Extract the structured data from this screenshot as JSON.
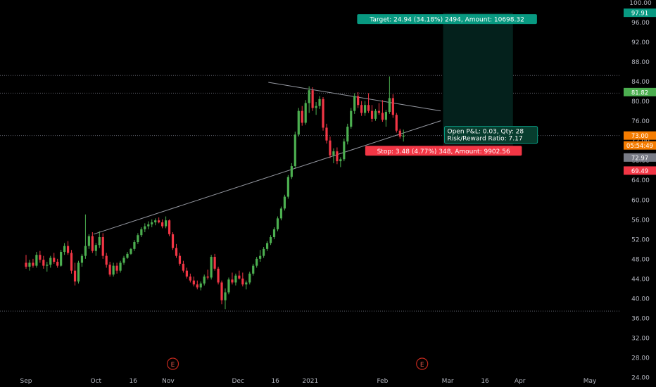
{
  "chart_data": {
    "type": "candlestick",
    "x_axis": {
      "labels": [
        "Sep",
        "Oct",
        "16",
        "Nov",
        "Dec",
        "16",
        "2021",
        "Feb",
        "Mar",
        "16",
        "Apr",
        "May"
      ],
      "label_days": [
        0,
        30,
        46,
        61,
        91,
        107,
        122,
        153,
        181,
        197,
        212,
        242
      ]
    },
    "y_axis": {
      "range": [
        22,
        100.5
      ],
      "ticks": [
        "24.00",
        "28.00",
        "32.00",
        "36.00",
        "40.00",
        "44.00",
        "48.00",
        "52.00",
        "56.00",
        "60.00",
        "64.00",
        "68.00",
        "72.00",
        "76.00",
        "80.00",
        "84.00",
        "88.00",
        "92.00",
        "96.00",
        "100.00"
      ]
    },
    "candles": [
      [
        47.2,
        48.8,
        46.0,
        46.4
      ],
      [
        46.4,
        47.8,
        45.6,
        47.2
      ],
      [
        47.2,
        48.0,
        46.2,
        46.6
      ],
      [
        46.6,
        49.4,
        46.2,
        48.8
      ],
      [
        48.8,
        49.6,
        47.2,
        47.8
      ],
      [
        47.8,
        48.6,
        46.0,
        46.6
      ],
      [
        46.6,
        47.4,
        45.4,
        46.8
      ],
      [
        46.8,
        48.6,
        46.2,
        48.2
      ],
      [
        48.2,
        49.2,
        47.0,
        47.4
      ],
      [
        47.4,
        48.0,
        46.2,
        46.6
      ],
      [
        46.6,
        49.8,
        46.4,
        49.4
      ],
      [
        49.4,
        51.2,
        48.8,
        50.6
      ],
      [
        50.6,
        51.6,
        48.8,
        49.2
      ],
      [
        49.2,
        49.8,
        45.0,
        45.6
      ],
      [
        45.6,
        47.2,
        42.6,
        43.4
      ],
      [
        43.4,
        47.6,
        43.0,
        47.2
      ],
      [
        47.2,
        49.0,
        46.4,
        48.6
      ],
      [
        48.6,
        57.0,
        48.0,
        50.6
      ],
      [
        50.6,
        53.0,
        50.0,
        52.6
      ],
      [
        52.6,
        53.4,
        49.2,
        49.6
      ],
      [
        49.6,
        51.2,
        48.6,
        50.8
      ],
      [
        50.8,
        53.6,
        50.2,
        52.4
      ],
      [
        52.4,
        53.2,
        48.0,
        48.6
      ],
      [
        48.6,
        49.2,
        46.2,
        46.8
      ],
      [
        46.8,
        47.4,
        44.4,
        44.8
      ],
      [
        44.8,
        47.2,
        44.4,
        46.6
      ],
      [
        46.6,
        47.2,
        45.0,
        45.6
      ],
      [
        45.6,
        47.6,
        45.2,
        47.2
      ],
      [
        47.2,
        48.6,
        46.8,
        48.2
      ],
      [
        48.2,
        49.4,
        48.0,
        49.0
      ],
      [
        49.0,
        50.2,
        48.8,
        50.0
      ],
      [
        50.0,
        51.8,
        49.6,
        51.4
      ],
      [
        51.4,
        53.2,
        51.0,
        52.8
      ],
      [
        52.8,
        54.4,
        52.4,
        54.0
      ],
      [
        54.0,
        55.2,
        53.4,
        54.6
      ],
      [
        54.6,
        55.6,
        54.0,
        55.0
      ],
      [
        55.0,
        56.0,
        54.4,
        55.4
      ],
      [
        55.4,
        56.2,
        54.8,
        55.8
      ],
      [
        55.8,
        56.4,
        55.2,
        55.4
      ],
      [
        55.4,
        56.0,
        54.2,
        54.6
      ],
      [
        54.6,
        56.6,
        54.2,
        55.8
      ],
      [
        55.8,
        56.0,
        52.6,
        53.0
      ],
      [
        53.0,
        53.4,
        49.8,
        50.2
      ],
      [
        50.2,
        51.0,
        48.2,
        48.6
      ],
      [
        48.6,
        49.2,
        46.6,
        47.0
      ],
      [
        47.0,
        47.6,
        45.2,
        45.6
      ],
      [
        45.6,
        46.2,
        44.0,
        44.4
      ],
      [
        44.4,
        45.0,
        43.2,
        43.6
      ],
      [
        43.6,
        44.4,
        42.4,
        42.8
      ],
      [
        42.8,
        43.6,
        41.8,
        42.2
      ],
      [
        42.2,
        43.4,
        41.6,
        43.0
      ],
      [
        43.0,
        44.8,
        42.6,
        44.4
      ],
      [
        44.4,
        45.8,
        43.8,
        44.2
      ],
      [
        44.2,
        48.8,
        43.8,
        48.4
      ],
      [
        48.4,
        49.0,
        45.6,
        46.0
      ],
      [
        46.0,
        46.4,
        42.8,
        43.2
      ],
      [
        43.2,
        43.6,
        38.8,
        39.6
      ],
      [
        39.6,
        42.0,
        37.8,
        41.2
      ],
      [
        41.2,
        44.2,
        40.8,
        43.8
      ],
      [
        43.8,
        45.2,
        42.8,
        43.2
      ],
      [
        43.2,
        45.0,
        42.6,
        44.6
      ],
      [
        44.6,
        45.6,
        43.8,
        44.0
      ],
      [
        44.0,
        45.2,
        42.4,
        42.8
      ],
      [
        42.8,
        43.6,
        41.8,
        43.2
      ],
      [
        43.2,
        45.4,
        42.8,
        45.0
      ],
      [
        45.0,
        47.0,
        44.6,
        46.6
      ],
      [
        46.6,
        48.4,
        46.2,
        48.0
      ],
      [
        48.0,
        49.8,
        47.4,
        48.6
      ],
      [
        48.6,
        50.4,
        48.2,
        50.0
      ],
      [
        50.0,
        51.6,
        49.6,
        51.2
      ],
      [
        51.2,
        52.8,
        50.8,
        52.4
      ],
      [
        52.4,
        54.4,
        52.0,
        54.0
      ],
      [
        54.0,
        56.6,
        53.6,
        56.2
      ],
      [
        56.2,
        58.6,
        55.8,
        58.2
      ],
      [
        58.2,
        61.0,
        57.8,
        60.6
      ],
      [
        60.6,
        65.0,
        60.2,
        64.6
      ],
      [
        64.6,
        67.4,
        64.2,
        66.8
      ],
      [
        66.8,
        73.8,
        66.4,
        73.2
      ],
      [
        73.2,
        78.6,
        72.8,
        78.0
      ],
      [
        78.0,
        79.0,
        75.0,
        75.6
      ],
      [
        75.6,
        80.2,
        75.2,
        79.6
      ],
      [
        79.6,
        83.0,
        77.6,
        82.2
      ],
      [
        82.2,
        82.8,
        78.0,
        78.6
      ],
      [
        78.6,
        79.8,
        77.2,
        79.0
      ],
      [
        79.0,
        81.0,
        78.4,
        80.4
      ],
      [
        80.4,
        80.8,
        74.0,
        74.6
      ],
      [
        74.6,
        75.4,
        71.4,
        72.0
      ],
      [
        72.0,
        72.8,
        68.4,
        69.0
      ],
      [
        69.0,
        70.4,
        67.4,
        69.8
      ],
      [
        69.8,
        70.6,
        67.2,
        67.8
      ],
      [
        67.8,
        68.6,
        66.6,
        68.2
      ],
      [
        68.2,
        72.4,
        67.8,
        71.8
      ],
      [
        71.8,
        75.4,
        71.2,
        74.8
      ],
      [
        74.8,
        78.6,
        74.4,
        78.0
      ],
      [
        78.0,
        81.6,
        77.4,
        81.0
      ],
      [
        81.0,
        81.8,
        78.6,
        79.2
      ],
      [
        79.2,
        80.0,
        77.0,
        77.6
      ],
      [
        77.6,
        80.0,
        77.0,
        79.2
      ],
      [
        79.2,
        81.6,
        77.6,
        78.0
      ],
      [
        78.0,
        79.2,
        75.8,
        76.4
      ],
      [
        76.4,
        78.4,
        76.0,
        78.0
      ],
      [
        78.0,
        79.6,
        77.2,
        77.6
      ],
      [
        77.6,
        80.2,
        75.8,
        76.2
      ],
      [
        76.2,
        78.2,
        74.8,
        77.8
      ],
      [
        77.8,
        85.0,
        77.4,
        80.6
      ],
      [
        80.6,
        81.4,
        76.6,
        77.2
      ],
      [
        77.2,
        77.6,
        73.6,
        74.0
      ],
      [
        74.0,
        74.4,
        72.4,
        72.8
      ],
      [
        72.8,
        74.2,
        71.8,
        73.0
      ]
    ],
    "start_day": 0,
    "day_step": 1.5,
    "trendlines": [
      {
        "points": [
          [
            29,
            53.0
          ],
          [
            178,
            76.0
          ]
        ],
        "name": "support"
      },
      {
        "points": [
          [
            104,
            83.8
          ],
          [
            178,
            78.0
          ]
        ],
        "name": "resistance"
      }
    ],
    "h_lines": [
      85.2,
      81.6,
      73.0,
      37.4
    ],
    "earnings_markers": [
      {
        "day": 63,
        "label": "E"
      },
      {
        "day": 170,
        "label": "E"
      }
    ],
    "position": {
      "entry": 73.0,
      "target": 97.91,
      "stop": 69.49,
      "from_day": 179,
      "to_day": 209,
      "target_label": "Target: 24.94 (34.18%) 2494, Amount: 10698.32",
      "pnl_label": "Open P&L: 0.03, Qty: 28",
      "rr_label": "Risk/Reward Ratio: 7.17",
      "stop_label": "Stop: 3.48 (4.77%) 348, Amount: 9902.56"
    },
    "price_badges": [
      {
        "price": 97.91,
        "text": "97.91",
        "color": "#089981"
      },
      {
        "price": 81.82,
        "text": "81.82",
        "color": "#4caf50"
      },
      {
        "price": 73.0,
        "text": "73.00",
        "color": "#f57c00"
      },
      {
        "price": 71.0,
        "text": "05:54:49",
        "color": "#f57c00"
      },
      {
        "price": 68.55,
        "text": "72.97",
        "color": "#787b86"
      },
      {
        "price": 65.9,
        "text": "69.49",
        "color": "#f23645"
      }
    ],
    "colors": {
      "up": "#4caf50",
      "down": "#f23645",
      "trend": "#9598a1",
      "target_fill": "#04211c",
      "axis_text": "#b2b5be",
      "target_label_bg": "#089981",
      "stop_label_bg": "#f23645",
      "pnl_bg": "#073d2e",
      "pnl_border": "#089981"
    }
  }
}
